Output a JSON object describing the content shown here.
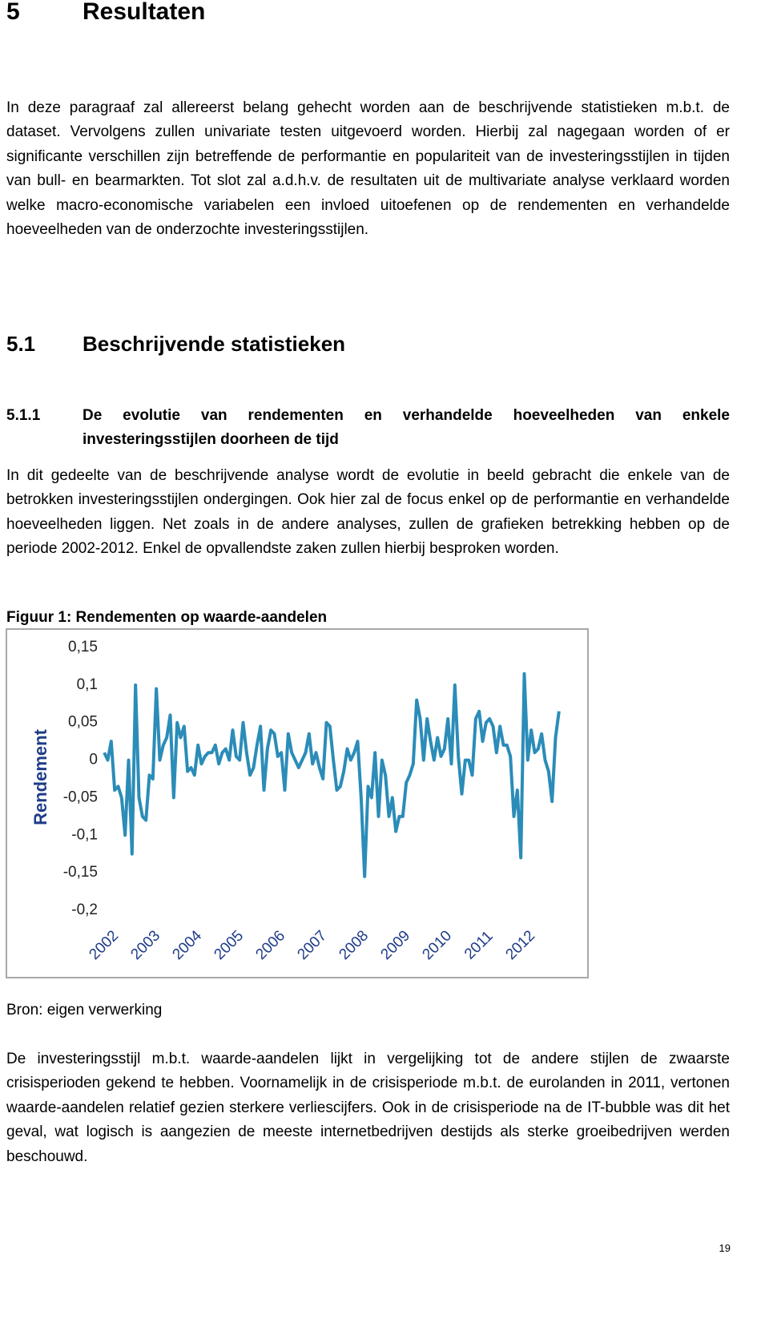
{
  "heading": {
    "number": "5",
    "title": "Resultaten"
  },
  "intro": "In deze paragraaf zal allereerst belang gehecht worden aan de beschrijvende statistieken m.b.t. de dataset. Vervolgens zullen univariate testen uitgevoerd worden. Hierbij zal nagegaan worden of er significante verschillen zijn betreffende de performantie en populariteit van de investeringsstijlen in tijden van bull- en bearmarkten. Tot slot zal a.d.h.v. de resultaten uit de multivariate analyse verklaard worden welke macro-economische variabelen een invloed uitoefenen op de rendementen en verhandelde hoeveelheden van de onderzochte investeringsstijlen.",
  "section": {
    "number": "5.1",
    "title": "Beschrijvende statistieken"
  },
  "subsection": {
    "number": "5.1.1",
    "title": "De evolutie van rendementen en verhandelde hoeveelheden van enkele investeringsstijlen doorheen de tijd"
  },
  "paragraph_1": "In dit gedeelte van de beschrijvende analyse wordt de evolutie in beeld gebracht die enkele van de betrokken investeringsstijlen ondergingen. Ook hier zal de focus enkel op de performantie en verhandelde hoeveelheden liggen. Net zoals in de andere analyses, zullen de grafieken betrekking hebben op de periode 2002-2012. Enkel de opvallendste zaken zullen hierbij besproken worden.",
  "figure_caption": "Figuur 1: Rendementen op waarde-aandelen",
  "source": "Bron: eigen verwerking",
  "paragraph_2": "De investeringsstijl m.b.t. waarde-aandelen lijkt in vergelijking tot de andere stijlen de zwaarste crisisperioden gekend te hebben. Voornamelijk in de crisisperiode m.b.t. de eurolanden in 2011, vertonen waarde-aandelen relatief gezien sterkere verliescijfers. Ook in de crisisperiode na de IT-bubble was dit het geval, wat logisch is aangezien de meeste internetbedrijven destijds als sterke groeibedrijven werden beschouwd.",
  "page_number": "19",
  "chart_data": {
    "type": "line",
    "y_label": "Rendement",
    "color": "#2b8cb8",
    "categories": [
      "2002",
      null,
      null,
      null,
      null,
      null,
      null,
      null,
      null,
      null,
      null,
      null,
      "2003",
      null,
      null,
      null,
      null,
      null,
      null,
      null,
      null,
      null,
      null,
      null,
      "2004",
      null,
      null,
      null,
      null,
      null,
      null,
      null,
      null,
      null,
      null,
      null,
      "2005",
      null,
      null,
      null,
      null,
      null,
      null,
      null,
      null,
      null,
      null,
      null,
      "2006",
      null,
      null,
      null,
      null,
      null,
      null,
      null,
      null,
      null,
      null,
      null,
      "2007",
      null,
      null,
      null,
      null,
      null,
      null,
      null,
      null,
      null,
      null,
      null,
      "2008",
      null,
      null,
      null,
      null,
      null,
      null,
      null,
      null,
      null,
      null,
      null,
      "2009",
      null,
      null,
      null,
      null,
      null,
      null,
      null,
      null,
      null,
      null,
      null,
      "2010",
      null,
      null,
      null,
      null,
      null,
      null,
      null,
      null,
      null,
      null,
      null,
      "2011",
      null,
      null,
      null,
      null,
      null,
      null,
      null,
      null,
      null,
      null,
      null,
      "2012",
      null,
      null,
      null,
      null,
      null,
      null,
      null,
      null,
      null,
      null,
      null
    ],
    "values": [
      0.01,
      0.0,
      0.025,
      -0.04,
      -0.035,
      -0.05,
      -0.1,
      0.0,
      -0.125,
      0.1,
      -0.05,
      -0.075,
      -0.08,
      -0.02,
      -0.025,
      0.095,
      0.0,
      0.02,
      0.03,
      0.06,
      -0.05,
      0.05,
      0.03,
      0.045,
      -0.015,
      -0.01,
      -0.02,
      0.02,
      -0.005,
      0.005,
      0.01,
      0.01,
      0.02,
      -0.005,
      0.01,
      0.015,
      0.0,
      0.04,
      0.005,
      0.0,
      0.05,
      0.01,
      -0.02,
      -0.01,
      0.02,
      0.045,
      -0.04,
      0.015,
      0.04,
      0.035,
      0.005,
      0.01,
      -0.04,
      0.035,
      0.01,
      0.0,
      -0.01,
      0.0,
      0.01,
      0.035,
      -0.005,
      0.01,
      -0.01,
      -0.025,
      0.05,
      0.045,
      0.0,
      -0.04,
      -0.035,
      -0.015,
      0.015,
      0.0,
      0.01,
      0.025,
      -0.05,
      -0.155,
      -0.035,
      -0.05,
      0.01,
      -0.075,
      0.0,
      -0.02,
      -0.075,
      -0.05,
      -0.095,
      -0.075,
      -0.075,
      -0.03,
      -0.02,
      -0.005,
      0.08,
      0.055,
      0.0,
      0.055,
      0.025,
      0.0,
      0.03,
      0.005,
      0.015,
      0.055,
      -0.005,
      0.1,
      0.005,
      -0.045,
      0.0,
      0.0,
      -0.02,
      0.055,
      0.065,
      0.025,
      0.05,
      0.055,
      0.045,
      0.01,
      0.045,
      0.02,
      0.02,
      0.005,
      -0.075,
      -0.04,
      -0.13,
      0.115,
      0.0,
      0.04,
      0.01,
      0.015,
      0.035,
      0.0,
      -0.015,
      -0.055,
      0.03,
      0.065
    ],
    "ylim": [
      -0.2,
      0.15
    ],
    "yticks": [
      {
        "value": 0.15,
        "label": "0,15"
      },
      {
        "value": 0.1,
        "label": "0,1"
      },
      {
        "value": 0.05,
        "label": "0,05"
      },
      0,
      {
        "value": -0.05,
        "label": "-0,05"
      },
      {
        "value": -0.1,
        "label": "-0,1"
      },
      {
        "value": -0.15,
        "label": "-0,15"
      },
      {
        "value": -0.2,
        "label": "-0,2"
      }
    ],
    "grid": false
  }
}
